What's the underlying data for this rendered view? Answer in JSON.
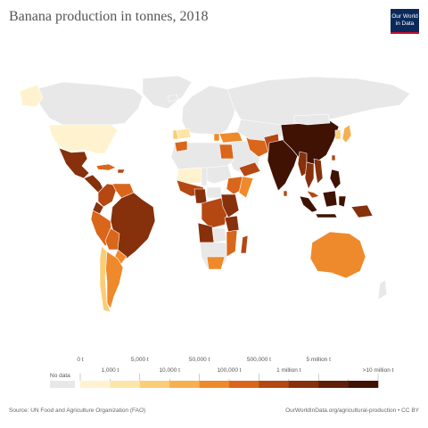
{
  "header": {
    "title": "Banana production in tonnes, 2018",
    "logo_line1": "Our World",
    "logo_line2": "in Data"
  },
  "map": {
    "no_data_color": "#e8e8e8",
    "legend": {
      "no_data_label": "No data",
      "upper_labels": [
        "0 t",
        "5,000 t",
        "50,000 t",
        "500,000 t",
        "5 million t"
      ],
      "lower_labels": [
        "1,000 t",
        "10,000 t",
        "100,000 t",
        "1 million t",
        ">10 million t"
      ],
      "bins": [
        {
          "range": "0–1,000 t",
          "color": "#fff3cf"
        },
        {
          "range": "1,000–5,000 t",
          "color": "#fde5a6"
        },
        {
          "range": "5,000–10,000 t",
          "color": "#fbcd77"
        },
        {
          "range": "10,000–50,000 t",
          "color": "#f6b04f"
        },
        {
          "range": "50,000–100,000 t",
          "color": "#ee8a2b"
        },
        {
          "range": "100,000–500,000 t",
          "color": "#d9661a"
        },
        {
          "range": "500,000–1 million t",
          "color": "#b54712"
        },
        {
          "range": "1–5 million t",
          "color": "#86300c"
        },
        {
          "range": "5–10 million t",
          "color": "#5f1f06"
        },
        {
          "range": ">10 million t",
          "color": "#3f1203"
        }
      ]
    }
  },
  "footer": {
    "source": "Source: UN Food and Agriculture Organization (FAO)",
    "url": "OurWorldInData.org/agricultural-production • CC BY"
  }
}
